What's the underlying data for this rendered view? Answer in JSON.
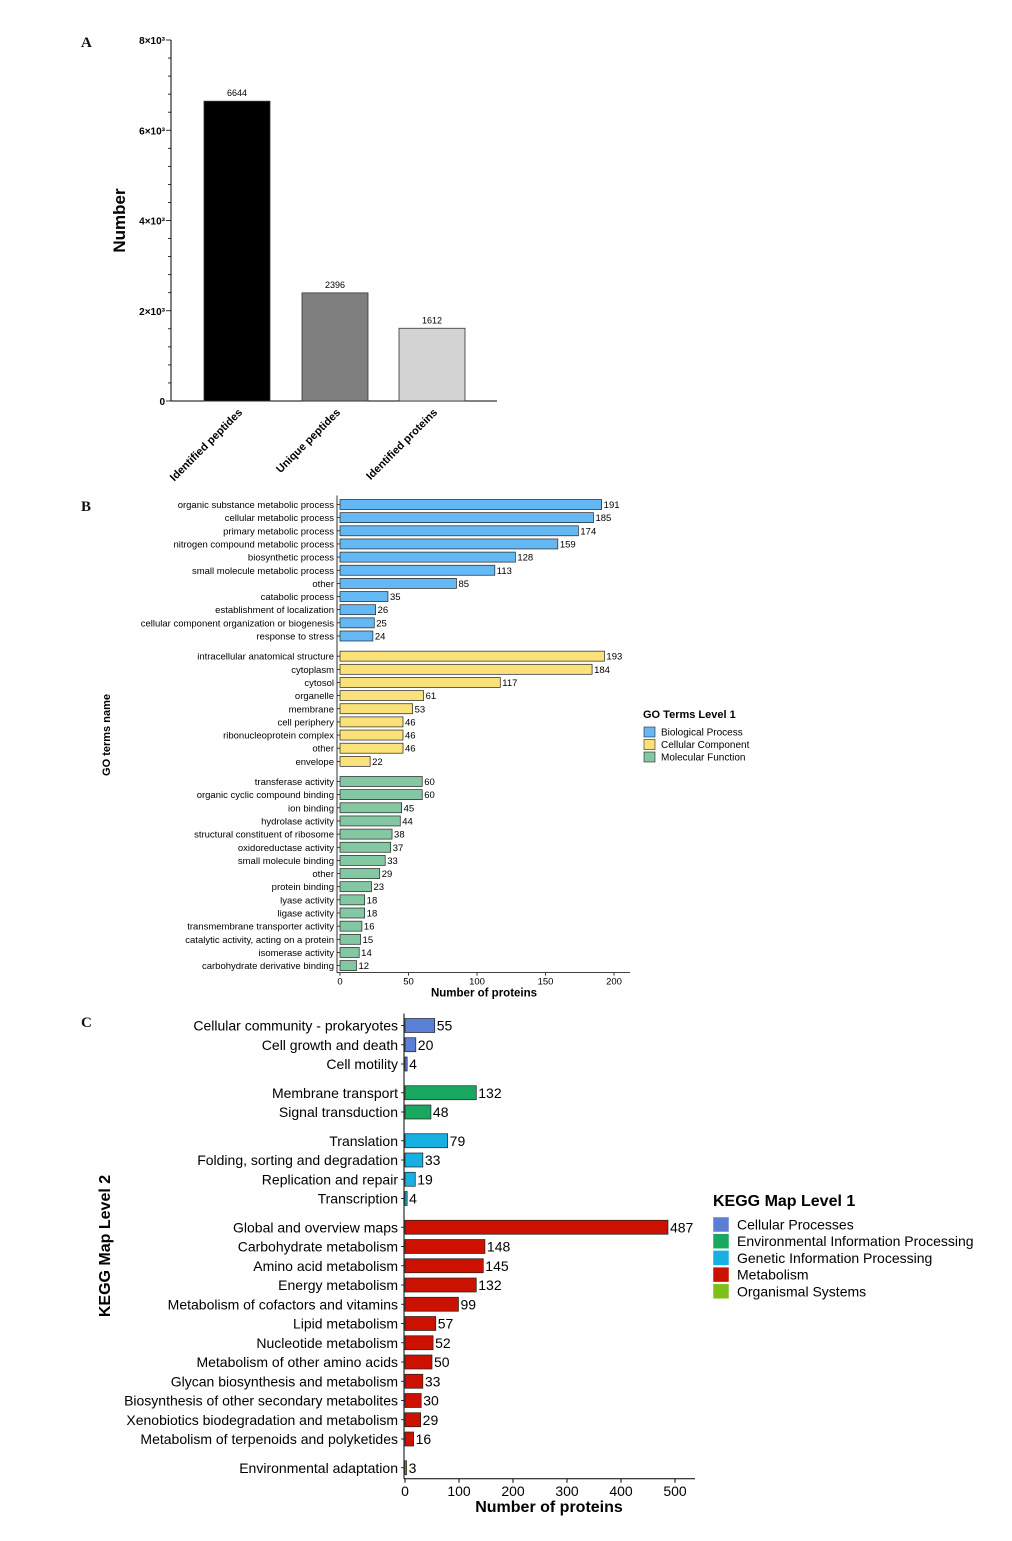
{
  "panels": {
    "a": "A",
    "b": "B",
    "c": "C"
  },
  "chart_data": [
    {
      "id": "A",
      "type": "bar",
      "categories": [
        "Identified peptides",
        "Unique peptides",
        "Identified proteins"
      ],
      "values": [
        6644,
        2396,
        1612
      ],
      "value_labels": [
        "6644",
        "2396",
        "1612"
      ],
      "colors": [
        "#000000",
        "#7f7f7f",
        "#d3d3d3"
      ],
      "ylabel": "Number",
      "ylim": [
        0,
        8000
      ],
      "yticks": [
        0,
        2000,
        4000,
        6000,
        8000
      ],
      "ytick_labels": [
        "0",
        "2×10³",
        "4×10³",
        "6×10³",
        "8×10³"
      ],
      "grid": false
    },
    {
      "id": "B",
      "type": "bar",
      "orientation": "horizontal",
      "xlabel": "Number of proteins",
      "ylabel": "GO terms name",
      "xlim": [
        0,
        200
      ],
      "xticks": [
        0,
        50,
        100,
        150,
        200
      ],
      "legend_title": "GO Terms Level 1",
      "legend_position": "right",
      "groups": [
        {
          "name": "Biological Process",
          "color": "#64b9f4",
          "categories": [
            "organic substance metabolic process",
            "cellular metabolic process",
            "primary metabolic process",
            "nitrogen compound metabolic process",
            "biosynthetic process",
            "small molecule metabolic process",
            "other",
            "catabolic process",
            "establishment of localization",
            "cellular component organization or biogenesis",
            "response to stress"
          ],
          "values": [
            191,
            185,
            174,
            159,
            128,
            113,
            85,
            35,
            26,
            25,
            24
          ]
        },
        {
          "name": "Cellular Component",
          "color": "#fbe17a",
          "categories": [
            "intracellular anatomical structure",
            "cytoplasm",
            "cytosol",
            "organelle",
            "membrane",
            "cell periphery",
            "ribonucleoprotein complex",
            "other",
            "envelope"
          ],
          "values": [
            193,
            184,
            117,
            61,
            53,
            46,
            46,
            46,
            22
          ]
        },
        {
          "name": "Molecular Function",
          "color": "#84c7a3",
          "categories": [
            "transferase activity",
            "organic cyclic compound binding",
            "ion binding",
            "hydrolase activity",
            "structural constituent of ribosome",
            "oxidoreductase activity",
            "small molecule binding",
            "other",
            "protein binding",
            "lyase activity",
            "ligase activity",
            "transmembrane transporter activity",
            "catalytic activity, acting on a protein",
            "isomerase activity",
            "carbohydrate derivative binding"
          ],
          "values": [
            60,
            60,
            45,
            44,
            38,
            37,
            33,
            29,
            23,
            18,
            18,
            16,
            15,
            14,
            12
          ]
        }
      ]
    },
    {
      "id": "C",
      "type": "bar",
      "orientation": "horizontal",
      "xlabel": "Number of proteins",
      "ylabel": "KEGG Map Level 2",
      "xlim": [
        0,
        540
      ],
      "xticks": [
        0,
        100,
        200,
        300,
        400,
        500
      ],
      "legend_title": "KEGG Map Level 1",
      "legend_position": "right",
      "legend": [
        {
          "name": "Cellular Processes",
          "color": "#5b7fd6"
        },
        {
          "name": "Environmental Information Processing",
          "color": "#1aa760"
        },
        {
          "name": "Genetic Information Processing",
          "color": "#17b0e3"
        },
        {
          "name": "Metabolism",
          "color": "#cc1100"
        },
        {
          "name": "Organismal Systems",
          "color": "#7fbf1a"
        }
      ],
      "groups": [
        {
          "name": "Cellular Processes",
          "color": "#5b7fd6",
          "categories": [
            "Cellular community - prokaryotes",
            "Cell growth and death",
            "Cell motility"
          ],
          "values": [
            55,
            20,
            4
          ]
        },
        {
          "name": "Environmental Information Processing",
          "color": "#1aa760",
          "categories": [
            "Membrane transport",
            "Signal transduction"
          ],
          "values": [
            132,
            48
          ]
        },
        {
          "name": "Genetic Information Processing",
          "color": "#17b0e3",
          "categories": [
            "Translation",
            "Folding, sorting and degradation",
            "Replication and repair",
            "Transcription"
          ],
          "values": [
            79,
            33,
            19,
            4
          ]
        },
        {
          "name": "Metabolism",
          "color": "#cc1100",
          "categories": [
            "Global and overview maps",
            "Carbohydrate metabolism",
            "Amino acid metabolism",
            "Energy metabolism",
            "Metabolism of cofactors and vitamins",
            "Lipid metabolism",
            "Nucleotide metabolism",
            "Metabolism of other amino acids",
            "Glycan biosynthesis and metabolism",
            "Biosynthesis of other secondary metabolites",
            "Xenobiotics biodegradation and metabolism",
            "Metabolism of terpenoids and polyketides"
          ],
          "values": [
            487,
            148,
            145,
            132,
            99,
            57,
            52,
            50,
            33,
            30,
            29,
            16
          ]
        },
        {
          "name": "Organismal Systems",
          "color": "#7fbf1a",
          "categories": [
            "Environmental adaptation"
          ],
          "values": [
            3
          ]
        }
      ]
    }
  ]
}
